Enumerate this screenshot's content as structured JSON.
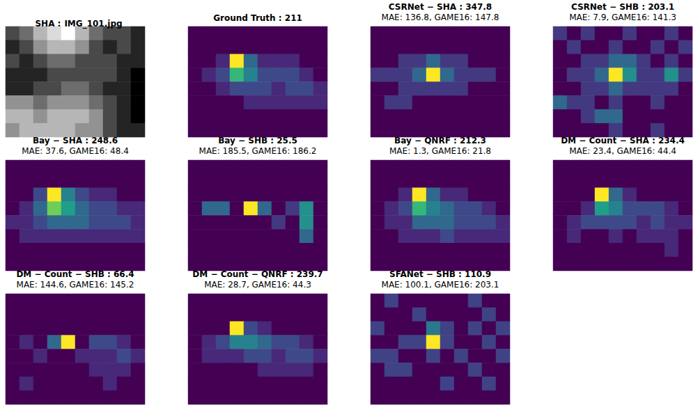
{
  "chart_data": [
    {
      "type": "image",
      "title": "SHA :",
      "subtitle": "IMG_101.jpg",
      "tick_labels": false,
      "cells": [
        [
          3,
          4,
          6,
          7,
          8,
          6,
          4,
          3,
          3,
          2
        ],
        [
          2,
          3,
          5,
          6,
          6,
          5,
          3,
          2,
          3,
          2
        ],
        [
          3,
          2,
          3,
          4,
          4,
          3,
          3,
          3,
          2,
          2
        ],
        [
          2,
          2,
          2,
          3,
          3,
          3,
          3,
          3,
          2,
          1
        ],
        [
          2,
          2,
          3,
          3,
          4,
          4,
          3,
          2,
          2,
          1
        ],
        [
          5,
          5,
          4,
          5,
          5,
          5,
          4,
          3,
          2,
          1
        ],
        [
          6,
          6,
          5,
          6,
          6,
          6,
          5,
          3,
          2,
          1
        ],
        [
          5,
          6,
          6,
          6,
          6,
          5,
          5,
          3,
          2,
          2
        ]
      ]
    },
    {
      "type": "heatmap",
      "title": "Ground Truth : 211",
      "tick_labels": false,
      "cells": [
        [
          0,
          0,
          0,
          0,
          0,
          0,
          0,
          0,
          0,
          0
        ],
        [
          0,
          0,
          0,
          0,
          0,
          0,
          0,
          0,
          0,
          0
        ],
        [
          0,
          0,
          1,
          9,
          3,
          1,
          1,
          1,
          0,
          0
        ],
        [
          0,
          1,
          2,
          6,
          4,
          2,
          2,
          2,
          1,
          0
        ],
        [
          0,
          0,
          1,
          2,
          2,
          2,
          1,
          2,
          2,
          1
        ],
        [
          0,
          0,
          0,
          0,
          1,
          1,
          1,
          1,
          1,
          1
        ],
        [
          0,
          0,
          0,
          0,
          0,
          0,
          0,
          0,
          0,
          0
        ],
        [
          0,
          0,
          0,
          0,
          0,
          0,
          0,
          0,
          0,
          0
        ]
      ]
    },
    {
      "type": "heatmap",
      "title": "CSRNet − SHA : 347.8",
      "subtitle": "MAE: 136.8, GAME16: 147.8",
      "tick_labels": false,
      "cells": [
        [
          1,
          1,
          1,
          1,
          1,
          1,
          1,
          1,
          1,
          1
        ],
        [
          1,
          1,
          1,
          1,
          1,
          1,
          1,
          1,
          1,
          1
        ],
        [
          1,
          1,
          2,
          2,
          3,
          2,
          2,
          1,
          1,
          1
        ],
        [
          2,
          2,
          2,
          3,
          7,
          3,
          2,
          2,
          2,
          1
        ],
        [
          1,
          1,
          2,
          2,
          2,
          2,
          2,
          1,
          1,
          1
        ],
        [
          1,
          2,
          2,
          1,
          1,
          1,
          1,
          1,
          1,
          1
        ],
        [
          1,
          1,
          1,
          1,
          1,
          1,
          1,
          1,
          1,
          1
        ],
        [
          1,
          1,
          1,
          1,
          1,
          1,
          1,
          1,
          1,
          1
        ]
      ]
    },
    {
      "type": "heatmap",
      "title": "CSRNet − SHB : 203.1",
      "subtitle": "MAE: 7.9, GAME16: 141.3",
      "tick_labels": false,
      "cells": [
        [
          2,
          1,
          2,
          1,
          1,
          2,
          1,
          1,
          2,
          1
        ],
        [
          1,
          2,
          1,
          1,
          2,
          1,
          1,
          2,
          1,
          2
        ],
        [
          1,
          1,
          2,
          2,
          3,
          3,
          2,
          1,
          2,
          1
        ],
        [
          1,
          2,
          2,
          3,
          7,
          4,
          2,
          2,
          4,
          2
        ],
        [
          1,
          1,
          2,
          2,
          3,
          2,
          2,
          2,
          2,
          1
        ],
        [
          3,
          2,
          2,
          1,
          2,
          1,
          1,
          2,
          1,
          1
        ],
        [
          1,
          1,
          2,
          3,
          3,
          1,
          1,
          1,
          1,
          1
        ],
        [
          1,
          1,
          1,
          1,
          2,
          1,
          1,
          2,
          1,
          1
        ]
      ]
    },
    {
      "type": "heatmap",
      "title": "Bay − SHA : 248.6",
      "subtitle": "MAE: 37.6, GAME16: 48.4",
      "tick_labels": false,
      "cells": [
        [
          0,
          0,
          0,
          0,
          0,
          0,
          0,
          0,
          0,
          0
        ],
        [
          0,
          0,
          0,
          0,
          0,
          0,
          0,
          0,
          0,
          0
        ],
        [
          0,
          0,
          2,
          9,
          4,
          2,
          1,
          1,
          0,
          0
        ],
        [
          0,
          1,
          3,
          7,
          5,
          3,
          2,
          2,
          1,
          1
        ],
        [
          1,
          1,
          2,
          3,
          3,
          3,
          2,
          2,
          2,
          1
        ],
        [
          0,
          1,
          1,
          1,
          1,
          1,
          1,
          1,
          1,
          1
        ],
        [
          0,
          0,
          0,
          0,
          0,
          0,
          0,
          0,
          0,
          0
        ],
        [
          0,
          0,
          0,
          0,
          0,
          0,
          0,
          0,
          0,
          0
        ]
      ]
    },
    {
      "type": "heatmap",
      "title": "Bay − SHB : 25.5",
      "subtitle": "MAE: 185.5, GAME16: 186.2",
      "tick_labels": false,
      "cells": [
        [
          0,
          0,
          0,
          0,
          0,
          0,
          0,
          0,
          0,
          0
        ],
        [
          0,
          0,
          0,
          0,
          0,
          0,
          0,
          0,
          0,
          0
        ],
        [
          0,
          0,
          0,
          0,
          0,
          0,
          0,
          0,
          0,
          0
        ],
        [
          0,
          2,
          2,
          0,
          6,
          2,
          0,
          1,
          3,
          0
        ],
        [
          0,
          0,
          0,
          0,
          0,
          0,
          1,
          0,
          3,
          0
        ],
        [
          0,
          0,
          0,
          0,
          0,
          0,
          0,
          0,
          2,
          0
        ],
        [
          0,
          0,
          0,
          0,
          0,
          0,
          0,
          0,
          0,
          0
        ],
        [
          0,
          0,
          0,
          0,
          0,
          0,
          0,
          0,
          0,
          0
        ]
      ]
    },
    {
      "type": "heatmap",
      "title": "Bay − QNRF : 212.3",
      "subtitle": "MAE: 1.3, GAME16: 21.8",
      "tick_labels": false,
      "cells": [
        [
          0,
          0,
          0,
          0,
          0,
          0,
          0,
          0,
          0,
          0
        ],
        [
          0,
          0,
          0,
          0,
          0,
          0,
          0,
          0,
          0,
          0
        ],
        [
          0,
          0,
          1,
          9,
          3,
          1,
          1,
          0,
          0,
          0
        ],
        [
          0,
          1,
          2,
          6,
          4,
          3,
          2,
          2,
          1,
          0
        ],
        [
          0,
          1,
          1,
          3,
          3,
          3,
          2,
          2,
          2,
          1
        ],
        [
          0,
          0,
          1,
          1,
          1,
          2,
          1,
          1,
          1,
          1
        ],
        [
          0,
          0,
          0,
          0,
          0,
          0,
          0,
          0,
          0,
          0
        ],
        [
          0,
          0,
          0,
          0,
          0,
          0,
          0,
          0,
          0,
          0
        ]
      ]
    },
    {
      "type": "heatmap",
      "title": "DM − Count − SHA : 234.4",
      "subtitle": "MAE: 23.4, GAME16: 44.4",
      "tick_labels": false,
      "cells": [
        [
          0,
          0,
          0,
          0,
          0,
          0,
          0,
          0,
          0,
          0
        ],
        [
          0,
          0,
          0,
          0,
          0,
          0,
          0,
          0,
          0,
          0
        ],
        [
          0,
          0,
          0,
          9,
          3,
          1,
          0,
          0,
          0,
          0
        ],
        [
          0,
          0,
          1,
          5,
          4,
          2,
          2,
          2,
          1,
          0
        ],
        [
          0,
          1,
          2,
          2,
          2,
          2,
          1,
          2,
          1,
          1
        ],
        [
          0,
          1,
          0,
          0,
          1,
          0,
          1,
          1,
          1,
          0
        ],
        [
          0,
          0,
          0,
          0,
          0,
          0,
          0,
          0,
          1,
          0
        ],
        [
          0,
          0,
          0,
          0,
          0,
          0,
          0,
          0,
          0,
          0
        ]
      ]
    },
    {
      "type": "heatmap",
      "title": "DM − Count − SHB : 66.4",
      "subtitle": "MAE: 144.6, GAME16: 145.2",
      "tick_labels": false,
      "cells": [
        [
          0,
          0,
          0,
          0,
          0,
          0,
          0,
          0,
          0,
          0
        ],
        [
          0,
          0,
          0,
          0,
          0,
          0,
          0,
          0,
          0,
          0
        ],
        [
          0,
          0,
          0,
          0,
          0,
          0,
          0,
          0,
          0,
          0
        ],
        [
          0,
          1,
          0,
          3,
          9,
          0,
          2,
          2,
          1,
          0
        ],
        [
          0,
          0,
          1,
          0,
          0,
          1,
          1,
          1,
          2,
          1
        ],
        [
          0,
          0,
          0,
          0,
          0,
          0,
          1,
          1,
          1,
          0
        ],
        [
          0,
          1,
          0,
          0,
          0,
          0,
          0,
          1,
          0,
          0
        ],
        [
          0,
          0,
          0,
          0,
          0,
          0,
          0,
          0,
          0,
          0
        ]
      ]
    },
    {
      "type": "heatmap",
      "title": "DM − Count − QNRF : 239.7",
      "subtitle": "MAE: 28.7, GAME16: 44.3",
      "tick_labels": false,
      "cells": [
        [
          0,
          0,
          0,
          0,
          0,
          0,
          0,
          0,
          0,
          0
        ],
        [
          0,
          0,
          0,
          0,
          0,
          0,
          0,
          0,
          0,
          0
        ],
        [
          0,
          0,
          0,
          9,
          2,
          1,
          0,
          0,
          0,
          0
        ],
        [
          0,
          1,
          2,
          4,
          4,
          3,
          2,
          2,
          1,
          0
        ],
        [
          0,
          1,
          1,
          1,
          2,
          2,
          1,
          2,
          2,
          1
        ],
        [
          0,
          0,
          0,
          0,
          0,
          1,
          1,
          1,
          1,
          0
        ],
        [
          0,
          0,
          0,
          0,
          0,
          0,
          0,
          0,
          0,
          0
        ],
        [
          0,
          0,
          0,
          0,
          0,
          0,
          0,
          0,
          0,
          0
        ]
      ]
    },
    {
      "type": "heatmap",
      "title": "SFANet − SHB : 110.9",
      "subtitle": "MAE: 100.1, GAME16: 203.1",
      "tick_labels": false,
      "cells": [
        [
          1,
          2,
          1,
          1,
          1,
          1,
          1,
          2,
          1,
          1
        ],
        [
          1,
          1,
          1,
          2,
          1,
          1,
          1,
          1,
          2,
          1
        ],
        [
          2,
          1,
          1,
          1,
          3,
          2,
          1,
          2,
          1,
          2
        ],
        [
          1,
          1,
          2,
          2,
          6,
          2,
          1,
          1,
          2,
          1
        ],
        [
          2,
          2,
          1,
          1,
          2,
          1,
          2,
          1,
          1,
          2
        ],
        [
          1,
          2,
          2,
          1,
          1,
          1,
          1,
          2,
          1,
          1
        ],
        [
          1,
          1,
          1,
          1,
          1,
          2,
          1,
          1,
          2,
          1
        ],
        [
          1,
          1,
          1,
          1,
          1,
          1,
          1,
          1,
          1,
          1
        ]
      ]
    }
  ]
}
